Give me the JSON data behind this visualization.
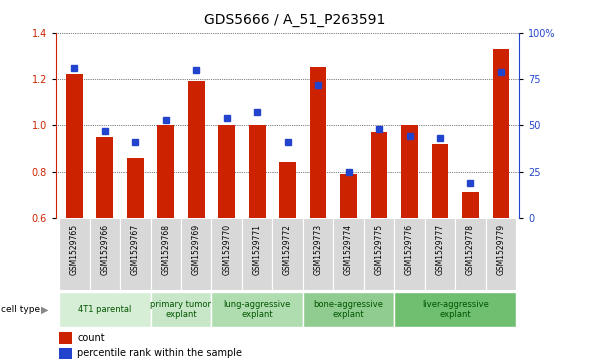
{
  "title": "GDS5666 / A_51_P263591",
  "samples": [
    "GSM1529765",
    "GSM1529766",
    "GSM1529767",
    "GSM1529768",
    "GSM1529769",
    "GSM1529770",
    "GSM1529771",
    "GSM1529772",
    "GSM1529773",
    "GSM1529774",
    "GSM1529775",
    "GSM1529776",
    "GSM1529777",
    "GSM1529778",
    "GSM1529779"
  ],
  "red_values": [
    1.22,
    0.95,
    0.86,
    1.0,
    1.19,
    1.0,
    1.0,
    0.84,
    1.25,
    0.79,
    0.97,
    1.0,
    0.92,
    0.71,
    1.33
  ],
  "blue_pct": [
    81,
    47,
    41,
    53,
    80,
    54,
    57,
    41,
    72,
    25,
    48,
    44,
    43,
    19,
    79
  ],
  "cell_groups": [
    {
      "label": "4T1 parental",
      "start": 0,
      "end": 3,
      "color": "#d6eed6"
    },
    {
      "label": "primary tumor\nexplant",
      "start": 3,
      "end": 5,
      "color": "#c8e6c8"
    },
    {
      "label": "lung-aggressive\nexplant",
      "start": 5,
      "end": 8,
      "color": "#b0ddb0"
    },
    {
      "label": "bone-aggressive\nexplant",
      "start": 8,
      "end": 11,
      "color": "#90cc90"
    },
    {
      "label": "liver-aggressive\nexplant",
      "start": 11,
      "end": 15,
      "color": "#70be70"
    }
  ],
  "ylim_left": [
    0.6,
    1.4
  ],
  "ylim_right": [
    0,
    100
  ],
  "yticks_left": [
    0.6,
    0.8,
    1.0,
    1.2,
    1.4
  ],
  "yticks_right": [
    0,
    25,
    50,
    75,
    100
  ],
  "bar_color": "#cc2200",
  "dot_color": "#2244cc",
  "bar_width": 0.55,
  "bg_color": "#ffffff",
  "grid_color": "#000000",
  "label_color_left": "#cc2200",
  "label_color_right": "#2244cc",
  "title_fontsize": 10,
  "tick_fontsize": 7,
  "sample_cell_bg": "#d8d8d8",
  "sample_cell_border": "#ffffff"
}
